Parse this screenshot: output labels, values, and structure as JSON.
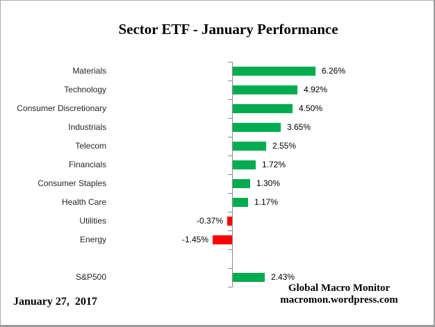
{
  "title": "Sector ETF - January Performance",
  "footer": {
    "date": "January 27,  2017",
    "attribution_line1": "Global Macro Monitor",
    "attribution_line2": "macromon.wordpress.com"
  },
  "colors": {
    "positive_bar": "#00AC50",
    "negative_bar": "#FF0000",
    "axis": "#8A8A8A",
    "border": "#9A9A9A",
    "background": "#FFFFFF",
    "text": "#000000"
  },
  "chart_data": {
    "type": "bar",
    "orientation": "horizontal",
    "title": "Sector ETF - January Performance",
    "xlabel": "",
    "ylabel": "",
    "unit": "%",
    "baseline": 0,
    "grid": false,
    "legend": false,
    "value_labels_visible": true,
    "categories": [
      "Materials",
      "Technology",
      "Consumer Discretionary",
      "Industrials",
      "Telecom",
      "Financials",
      "Consumer Staples",
      "Health Care",
      "Utilities",
      "Energy",
      "",
      "S&P500"
    ],
    "values": [
      6.26,
      4.92,
      4.5,
      3.65,
      2.55,
      1.72,
      1.3,
      1.17,
      -0.37,
      -1.45,
      null,
      2.43
    ],
    "labels": [
      "6.26%",
      "4.92%",
      "4.50%",
      "3.65%",
      "2.55%",
      "1.72%",
      "1.30%",
      "1.17%",
      "-0.37%",
      "-1.45%",
      "",
      "2.43%"
    ]
  }
}
